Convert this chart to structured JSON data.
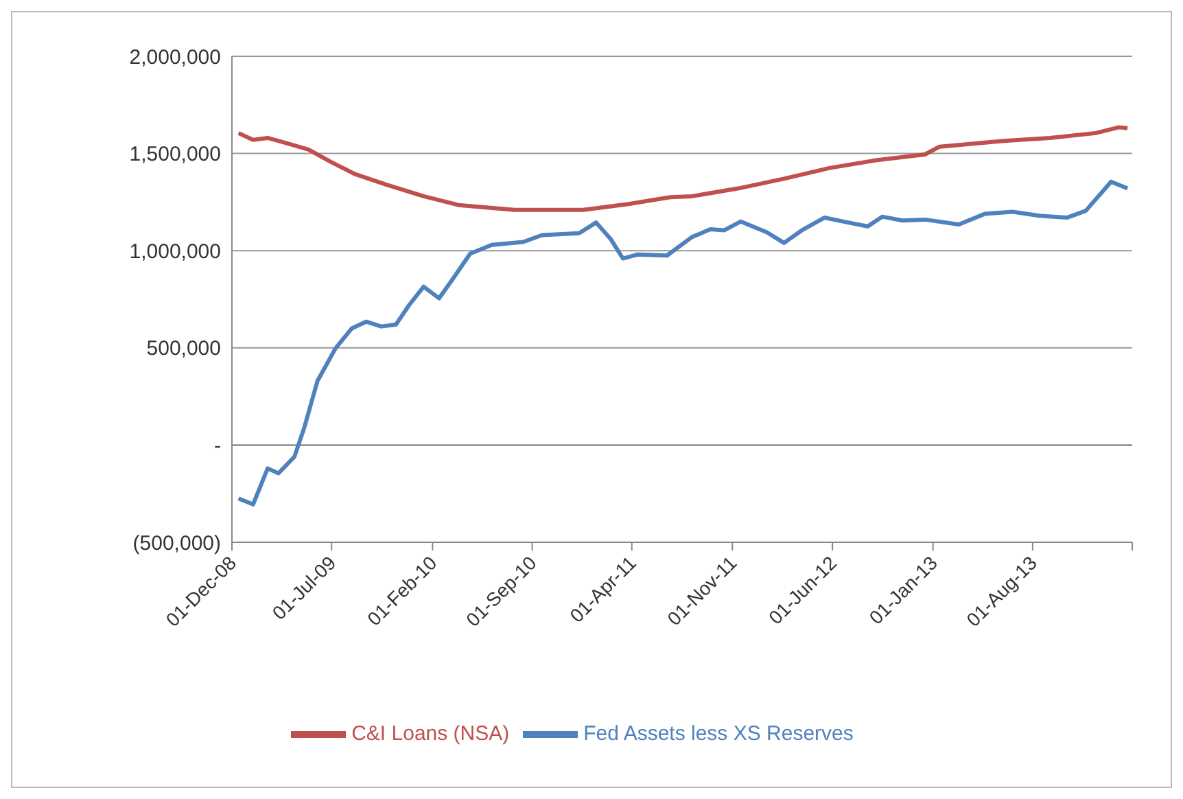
{
  "chart_data": {
    "type": "line",
    "xlim": [
      "2008-12-01",
      "2014-03-01"
    ],
    "xticks": [
      {
        "value": "2008-12-01",
        "label": "01-Dec-08"
      },
      {
        "value": "2009-07-01",
        "label": "01-Jul-09"
      },
      {
        "value": "2010-02-01",
        "label": "01-Feb-10"
      },
      {
        "value": "2010-09-01",
        "label": "01-Sep-10"
      },
      {
        "value": "2011-04-01",
        "label": "01-Apr-11"
      },
      {
        "value": "2011-11-01",
        "label": "01-Nov-11"
      },
      {
        "value": "2012-06-01",
        "label": "01-Jun-12"
      },
      {
        "value": "2013-01-01",
        "label": "01-Jan-13"
      },
      {
        "value": "2013-08-01",
        "label": "01-Aug-13"
      },
      {
        "value": "2014-03-01",
        "label": null
      }
    ],
    "ylim": [
      -500000,
      2000000
    ],
    "yticks": [
      {
        "value": -500000,
        "label": "(500,000)"
      },
      {
        "value": 0,
        "label": "-"
      },
      {
        "value": 500000,
        "label": "500,000"
      },
      {
        "value": 1000000,
        "label": "1,000,000"
      },
      {
        "value": 1500000,
        "label": "1,500,000"
      },
      {
        "value": 2000000,
        "label": "2,000,000"
      }
    ],
    "grid": "y",
    "legend": "bottom",
    "marker": "none",
    "line_style": "solid",
    "series": [
      {
        "name": "Fed Assets less XS Reserves",
        "color": "#4f81bd",
        "x": [
          "2008-12-15",
          "2009-01-15",
          "2009-02-15",
          "2009-03-10",
          "2009-04-13",
          "2009-05-04",
          "2009-06-01",
          "2009-07-10",
          "2009-08-13",
          "2009-09-13",
          "2009-10-15",
          "2009-11-15",
          "2009-12-13",
          "2010-01-13",
          "2010-02-15",
          "2010-03-19",
          "2010-04-22",
          "2010-06-07",
          "2010-08-13",
          "2010-09-22",
          "2010-12-10",
          "2011-01-15",
          "2011-02-15",
          "2011-03-13",
          "2011-04-13",
          "2011-06-15",
          "2011-08-07",
          "2011-09-15",
          "2011-10-15",
          "2011-11-19",
          "2012-01-13",
          "2012-02-19",
          "2012-03-28",
          "2012-05-15",
          "2012-07-04",
          "2012-08-15",
          "2012-09-15",
          "2012-10-28",
          "2012-12-15",
          "2013-02-25",
          "2013-04-22",
          "2013-06-19",
          "2013-08-15",
          "2013-10-13",
          "2013-11-22",
          "2014-01-15",
          "2014-02-19"
        ],
        "values": [
          -275000,
          -305000,
          -120000,
          -145000,
          -60000,
          90000,
          330000,
          500000,
          600000,
          635000,
          610000,
          620000,
          720000,
          815000,
          755000,
          865000,
          985000,
          1030000,
          1045000,
          1080000,
          1090000,
          1145000,
          1060000,
          960000,
          980000,
          975000,
          1070000,
          1110000,
          1105000,
          1150000,
          1095000,
          1040000,
          1105000,
          1170000,
          1145000,
          1125000,
          1175000,
          1155000,
          1160000,
          1135000,
          1190000,
          1200000,
          1180000,
          1170000,
          1205000,
          1355000,
          1320000
        ]
      },
      {
        "name": "C&I Loans (NSA)",
        "color": "#c0504d",
        "x": [
          "2008-12-15",
          "2009-01-15",
          "2009-02-15",
          "2009-03-25",
          "2009-05-13",
          "2009-07-01",
          "2009-08-19",
          "2009-10-25",
          "2010-01-13",
          "2010-03-28",
          "2010-07-25",
          "2010-12-19",
          "2011-03-25",
          "2011-06-22",
          "2011-08-07",
          "2011-11-13",
          "2012-02-19",
          "2012-05-25",
          "2012-09-01",
          "2012-12-15",
          "2013-01-15",
          "2013-06-01",
          "2013-09-07",
          "2013-12-13",
          "2014-02-01",
          "2014-02-19"
        ],
        "values": [
          1605000,
          1570000,
          1580000,
          1555000,
          1520000,
          1455000,
          1395000,
          1340000,
          1280000,
          1235000,
          1210000,
          1210000,
          1240000,
          1275000,
          1280000,
          1320000,
          1370000,
          1425000,
          1465000,
          1495000,
          1535000,
          1565000,
          1580000,
          1605000,
          1635000,
          1630000
        ]
      }
    ]
  }
}
